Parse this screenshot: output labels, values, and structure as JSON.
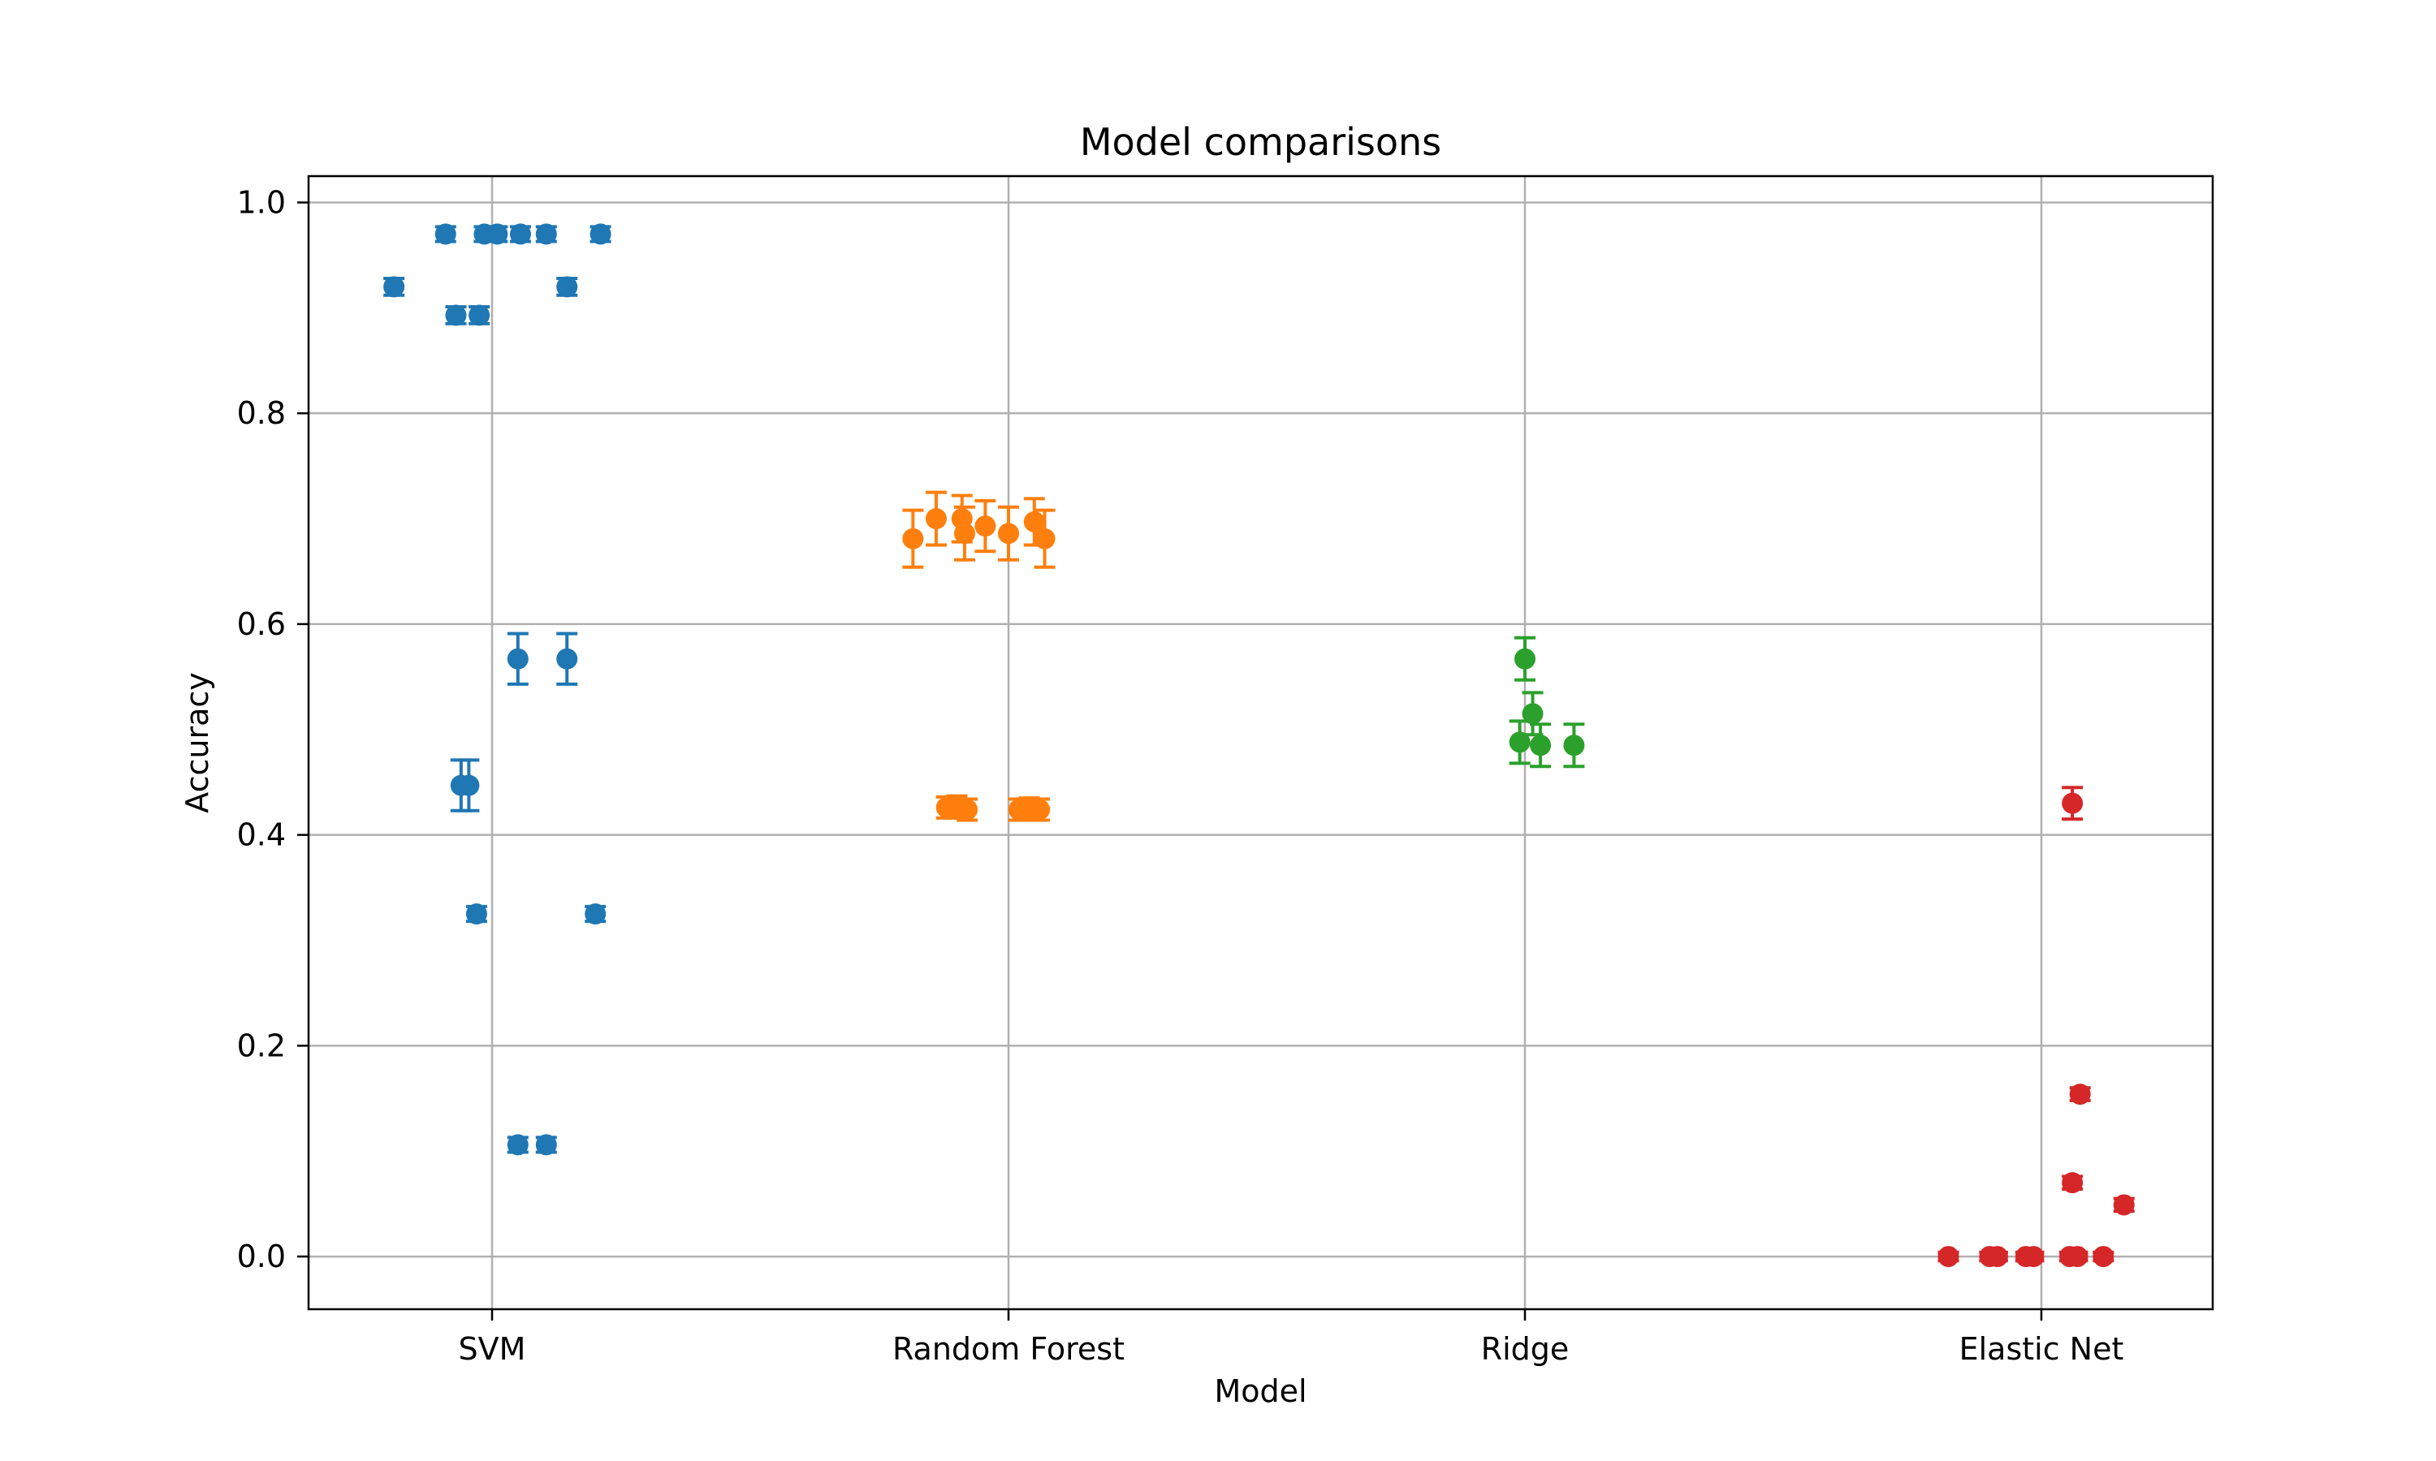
{
  "chart_data": {
    "type": "scatter",
    "title": "Model comparisons",
    "xlabel": "Model",
    "ylabel": "Accuracy",
    "categories": [
      "SVM",
      "Random Forest",
      "Ridge",
      "Elastic Net"
    ],
    "ylim": [
      -0.05,
      1.025
    ],
    "yticks": [
      "0.0",
      "0.2",
      "0.4",
      "0.6",
      "0.8",
      "1.0"
    ],
    "grid": true,
    "series": [
      {
        "color": "#1f77b4",
        "points": [
          {
            "x": -0.19,
            "y": 0.92,
            "err": 0.008
          },
          {
            "x": -0.09,
            "y": 0.97,
            "err": 0.007
          },
          {
            "x": -0.015,
            "y": 0.97,
            "err": 0.007
          },
          {
            "x": 0.01,
            "y": 0.97,
            "err": 0.007
          },
          {
            "x": 0.055,
            "y": 0.97,
            "err": 0.007
          },
          {
            "x": 0.105,
            "y": 0.97,
            "err": 0.007
          },
          {
            "x": 0.21,
            "y": 0.97,
            "err": 0.007
          },
          {
            "x": -0.07,
            "y": 0.893,
            "err": 0.008
          },
          {
            "x": -0.025,
            "y": 0.893,
            "err": 0.008
          },
          {
            "x": 0.145,
            "y": 0.92,
            "err": 0.008
          },
          {
            "x": 0.05,
            "y": 0.567,
            "err": 0.024
          },
          {
            "x": 0.145,
            "y": 0.567,
            "err": 0.024
          },
          {
            "x": -0.06,
            "y": 0.447,
            "err": 0.024
          },
          {
            "x": -0.045,
            "y": 0.447,
            "err": 0.024
          },
          {
            "x": -0.03,
            "y": 0.325,
            "err": 0.007
          },
          {
            "x": 0.2,
            "y": 0.325,
            "err": 0.007
          },
          {
            "x": 0.05,
            "y": 0.106,
            "err": 0.007
          },
          {
            "x": 0.105,
            "y": 0.106,
            "err": 0.007
          }
        ]
      },
      {
        "color": "#ff7f0e",
        "points": [
          {
            "x": -0.185,
            "y": 0.681,
            "err": 0.027
          },
          {
            "x": -0.14,
            "y": 0.7,
            "err": 0.025
          },
          {
            "x": -0.09,
            "y": 0.7,
            "err": 0.022
          },
          {
            "x": -0.085,
            "y": 0.686,
            "err": 0.025
          },
          {
            "x": -0.045,
            "y": 0.693,
            "err": 0.024
          },
          {
            "x": 0.0,
            "y": 0.686,
            "err": 0.025
          },
          {
            "x": 0.05,
            "y": 0.697,
            "err": 0.022
          },
          {
            "x": 0.07,
            "y": 0.681,
            "err": 0.027
          },
          {
            "x": -0.12,
            "y": 0.426,
            "err": 0.01
          },
          {
            "x": -0.1,
            "y": 0.427,
            "err": 0.01
          },
          {
            "x": -0.08,
            "y": 0.424,
            "err": 0.01
          },
          {
            "x": 0.02,
            "y": 0.424,
            "err": 0.01
          },
          {
            "x": 0.04,
            "y": 0.425,
            "err": 0.01
          },
          {
            "x": 0.06,
            "y": 0.424,
            "err": 0.01
          }
        ]
      },
      {
        "color": "#2ca02c",
        "points": [
          {
            "x": 0.0,
            "y": 0.567,
            "err": 0.02
          },
          {
            "x": 0.015,
            "y": 0.515,
            "err": 0.02
          },
          {
            "x": -0.01,
            "y": 0.488,
            "err": 0.02
          },
          {
            "x": 0.03,
            "y": 0.485,
            "err": 0.02
          },
          {
            "x": 0.095,
            "y": 0.485,
            "err": 0.02
          }
        ]
      },
      {
        "color": "#d62728",
        "points": [
          {
            "x": 0.06,
            "y": 0.43,
            "err": 0.015
          },
          {
            "x": 0.075,
            "y": 0.154,
            "err": 0.006
          },
          {
            "x": 0.06,
            "y": 0.07,
            "err": 0.006
          },
          {
            "x": 0.16,
            "y": 0.049,
            "err": 0.006
          },
          {
            "x": -0.18,
            "y": 0.0,
            "err": 0.004
          },
          {
            "x": -0.1,
            "y": 0.0,
            "err": 0.004
          },
          {
            "x": -0.085,
            "y": 0.0,
            "err": 0.004
          },
          {
            "x": -0.03,
            "y": 0.0,
            "err": 0.004
          },
          {
            "x": -0.015,
            "y": 0.0,
            "err": 0.004
          },
          {
            "x": 0.055,
            "y": 0.0,
            "err": 0.004
          },
          {
            "x": 0.07,
            "y": 0.0,
            "err": 0.004
          },
          {
            "x": 0.12,
            "y": 0.0,
            "err": 0.004
          }
        ]
      }
    ]
  }
}
